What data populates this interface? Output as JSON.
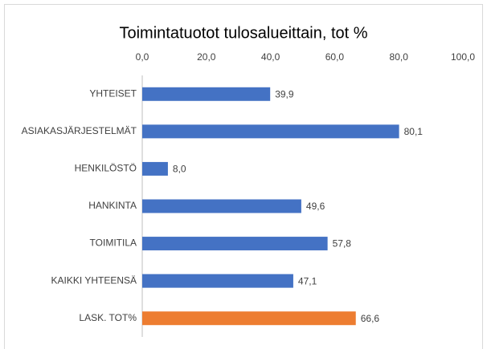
{
  "chart_data": {
    "type": "bar",
    "orientation": "horizontal",
    "title": "Toimintatuotot tulosalueittain, tot %",
    "categories": [
      "YHTEISET",
      "ASIAKASJÄRJESTELMÄT",
      "HENKILÖSTÖ",
      "HANKINTA",
      "TOIMITILA",
      "KAIKKI YHTEENSÄ",
      "LASK. TOT%"
    ],
    "values": [
      39.9,
      80.1,
      8.0,
      49.6,
      57.8,
      47.1,
      66.6
    ],
    "value_labels": [
      "39,9",
      "80,1",
      "8,0",
      "49,6",
      "57,8",
      "47,1",
      "66,6"
    ],
    "colors": [
      "#4472c4",
      "#4472c4",
      "#4472c4",
      "#4472c4",
      "#4472c4",
      "#4472c4",
      "#ed7d31"
    ],
    "xlim": [
      0,
      100
    ],
    "xticks": [
      {
        "value": 0,
        "label": "0,0"
      },
      {
        "value": 20,
        "label": "20,0"
      },
      {
        "value": 40,
        "label": "40,0"
      },
      {
        "value": 60,
        "label": "60,0"
      },
      {
        "value": 80,
        "label": "80,0"
      },
      {
        "value": 100,
        "label": "100,0"
      }
    ],
    "grid": false
  }
}
